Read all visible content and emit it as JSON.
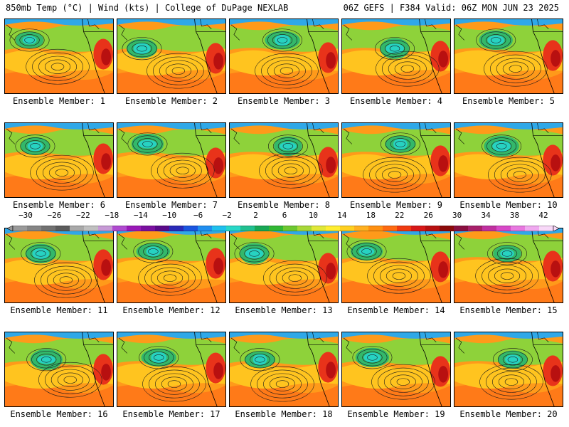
{
  "header": {
    "left_title": "850mb Temp (°C) | Wind (kts) | College of DuPage NEXLAB",
    "right_title": "06Z GEFS | F384 Valid: 06Z MON JUN 23 2025"
  },
  "colorbar": {
    "labels": [
      "−30",
      "−26",
      "−22",
      "−18",
      "−14",
      "−10",
      "−6",
      "−2",
      "2",
      "6",
      "10",
      "14",
      "18",
      "22",
      "26",
      "30",
      "34",
      "38",
      "42"
    ],
    "colors": [
      "#9a9a9a",
      "#858585",
      "#717171",
      "#5c5c5c",
      "#a9a9a9",
      "#c0c0c0",
      "#c79ad6",
      "#b04ad0",
      "#9a19b8",
      "#7a10a0",
      "#5a0a8a",
      "#2a2ab8",
      "#1a55e0",
      "#1f8ef0",
      "#1fc0ee",
      "#28d8c8",
      "#20c090",
      "#18a855",
      "#31b834",
      "#6dc830",
      "#a8d838",
      "#e0e838",
      "#ffee30",
      "#ffd020",
      "#ffb020",
      "#ff9010",
      "#ff6a10",
      "#f03a10",
      "#d81818",
      "#b81010",
      "#8c0a0a",
      "#8a1040",
      "#a8206a",
      "#c030a0",
      "#d848c8",
      "#e878e0",
      "#f0a8f0",
      "#f8d8f8"
    ]
  },
  "members": [
    {
      "label": "Ensemble Member: 1"
    },
    {
      "label": "Ensemble Member: 2"
    },
    {
      "label": "Ensemble Member: 3"
    },
    {
      "label": "Ensemble Member: 4"
    },
    {
      "label": "Ensemble Member: 5"
    },
    {
      "label": "Ensemble Member: 6"
    },
    {
      "label": "Ensemble Member: 7"
    },
    {
      "label": "Ensemble Member: 8"
    },
    {
      "label": "Ensemble Member: 9"
    },
    {
      "label": "Ensemble Member: 10"
    },
    {
      "label": "Ensemble Member: 11"
    },
    {
      "label": "Ensemble Member: 12"
    },
    {
      "label": "Ensemble Member: 13"
    },
    {
      "label": "Ensemble Member: 14"
    },
    {
      "label": "Ensemble Member: 15"
    },
    {
      "label": "Ensemble Member: 16"
    },
    {
      "label": "Ensemble Member: 17"
    },
    {
      "label": "Ensemble Member: 18"
    },
    {
      "label": "Ensemble Member: 19"
    },
    {
      "label": "Ensemble Member: 20"
    }
  ]
}
